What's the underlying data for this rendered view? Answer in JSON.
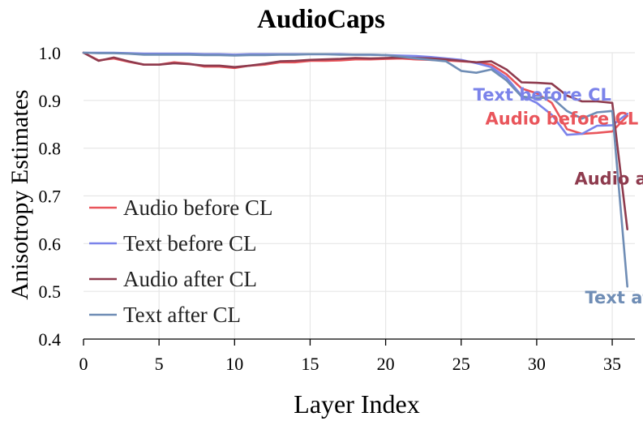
{
  "chart_data": {
    "type": "line",
    "title": "AudioCaps",
    "xlabel": "Layer Index",
    "ylabel": "Anisotropy Estimates",
    "xlim": [
      0,
      36.5
    ],
    "ylim": [
      0.4,
      1.0
    ],
    "xticks": [
      0,
      5,
      10,
      15,
      20,
      25,
      30,
      35
    ],
    "yticks": [
      0.4,
      0.5,
      0.6,
      0.7,
      0.8,
      0.9,
      1.0
    ],
    "x": [
      0,
      1,
      2,
      3,
      4,
      5,
      6,
      7,
      8,
      9,
      10,
      11,
      12,
      13,
      14,
      15,
      16,
      17,
      18,
      19,
      20,
      21,
      22,
      23,
      24,
      25,
      26,
      27,
      28,
      29,
      30,
      31,
      32,
      33,
      34,
      35,
      36
    ],
    "grid": true,
    "legend_position": "lower-left",
    "series": [
      {
        "name": "Audio before CL",
        "color": "#e9555b",
        "values": [
          1.0,
          0.984,
          0.988,
          0.981,
          0.975,
          0.975,
          0.98,
          0.977,
          0.971,
          0.971,
          0.968,
          0.973,
          0.975,
          0.98,
          0.98,
          0.983,
          0.983,
          0.984,
          0.986,
          0.986,
          0.987,
          0.988,
          0.986,
          0.985,
          0.984,
          0.982,
          0.98,
          0.975,
          0.955,
          0.925,
          0.915,
          0.895,
          0.84,
          0.83,
          0.832,
          0.835,
          0.868
        ]
      },
      {
        "name": "Text before CL",
        "color": "#7b83ea",
        "values": [
          1.0,
          1.0,
          1.0,
          0.999,
          0.998,
          0.998,
          0.998,
          0.998,
          0.997,
          0.997,
          0.996,
          0.997,
          0.997,
          0.997,
          0.997,
          0.997,
          0.997,
          0.997,
          0.996,
          0.996,
          0.995,
          0.994,
          0.993,
          0.991,
          0.988,
          0.985,
          0.978,
          0.97,
          0.948,
          0.91,
          0.895,
          0.87,
          0.828,
          0.83,
          0.847,
          0.848,
          0.872
        ]
      },
      {
        "name": "Audio after CL",
        "color": "#8e3b4e",
        "values": [
          1.0,
          0.983,
          0.99,
          0.982,
          0.975,
          0.975,
          0.978,
          0.976,
          0.973,
          0.973,
          0.97,
          0.973,
          0.977,
          0.982,
          0.983,
          0.985,
          0.986,
          0.987,
          0.989,
          0.988,
          0.989,
          0.99,
          0.989,
          0.988,
          0.986,
          0.983,
          0.98,
          0.982,
          0.965,
          0.938,
          0.937,
          0.935,
          0.91,
          0.898,
          0.898,
          0.895,
          0.63
        ]
      },
      {
        "name": "Text after CL",
        "color": "#6f8db5",
        "values": [
          1.0,
          0.999,
          0.999,
          0.998,
          0.996,
          0.996,
          0.996,
          0.996,
          0.995,
          0.995,
          0.994,
          0.995,
          0.995,
          0.996,
          0.996,
          0.997,
          0.997,
          0.996,
          0.996,
          0.996,
          0.995,
          0.992,
          0.988,
          0.985,
          0.982,
          0.962,
          0.958,
          0.965,
          0.942,
          0.908,
          0.905,
          0.906,
          0.878,
          0.862,
          0.875,
          0.878,
          0.51
        ]
      }
    ],
    "annotations": [
      {
        "text": "Text before CL",
        "color": "#7b83ea",
        "x": 25.8,
        "y": 0.9
      },
      {
        "text": "Audio before CL",
        "color": "#e9555b",
        "x": 26.6,
        "y": 0.85
      },
      {
        "text": "Audio after CL",
        "color": "#8e3b4e",
        "x": 32.5,
        "y": 0.724
      },
      {
        "text": "Text after CL",
        "color": "#6f8db5",
        "x": 33.2,
        "y": 0.475
      }
    ]
  }
}
